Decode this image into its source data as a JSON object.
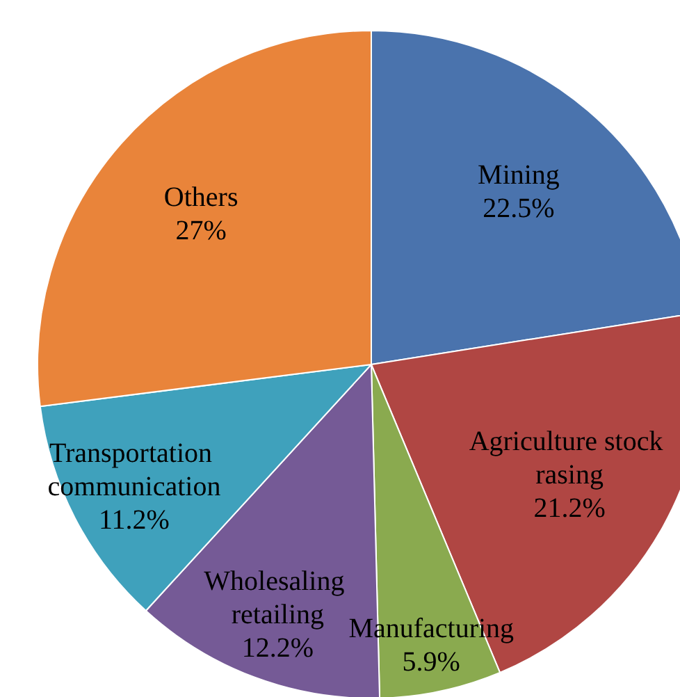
{
  "chart_data": {
    "type": "pie",
    "categories": [
      "Mining",
      "Agriculture stock rasing",
      "Manufacturing",
      "Wholesaling retailing",
      "Transportation communication",
      "Others"
    ],
    "values": [
      22.5,
      21.2,
      5.9,
      12.2,
      11.2,
      27
    ],
    "colors": [
      "#4a73ad",
      "#b04643",
      "#8aaa4f",
      "#755a96",
      "#3fa1bc",
      "#e9843a"
    ],
    "value_labels": [
      "22.5%",
      "21.2%",
      "5.9%",
      "12.2%",
      "11.2%",
      "27%"
    ]
  }
}
